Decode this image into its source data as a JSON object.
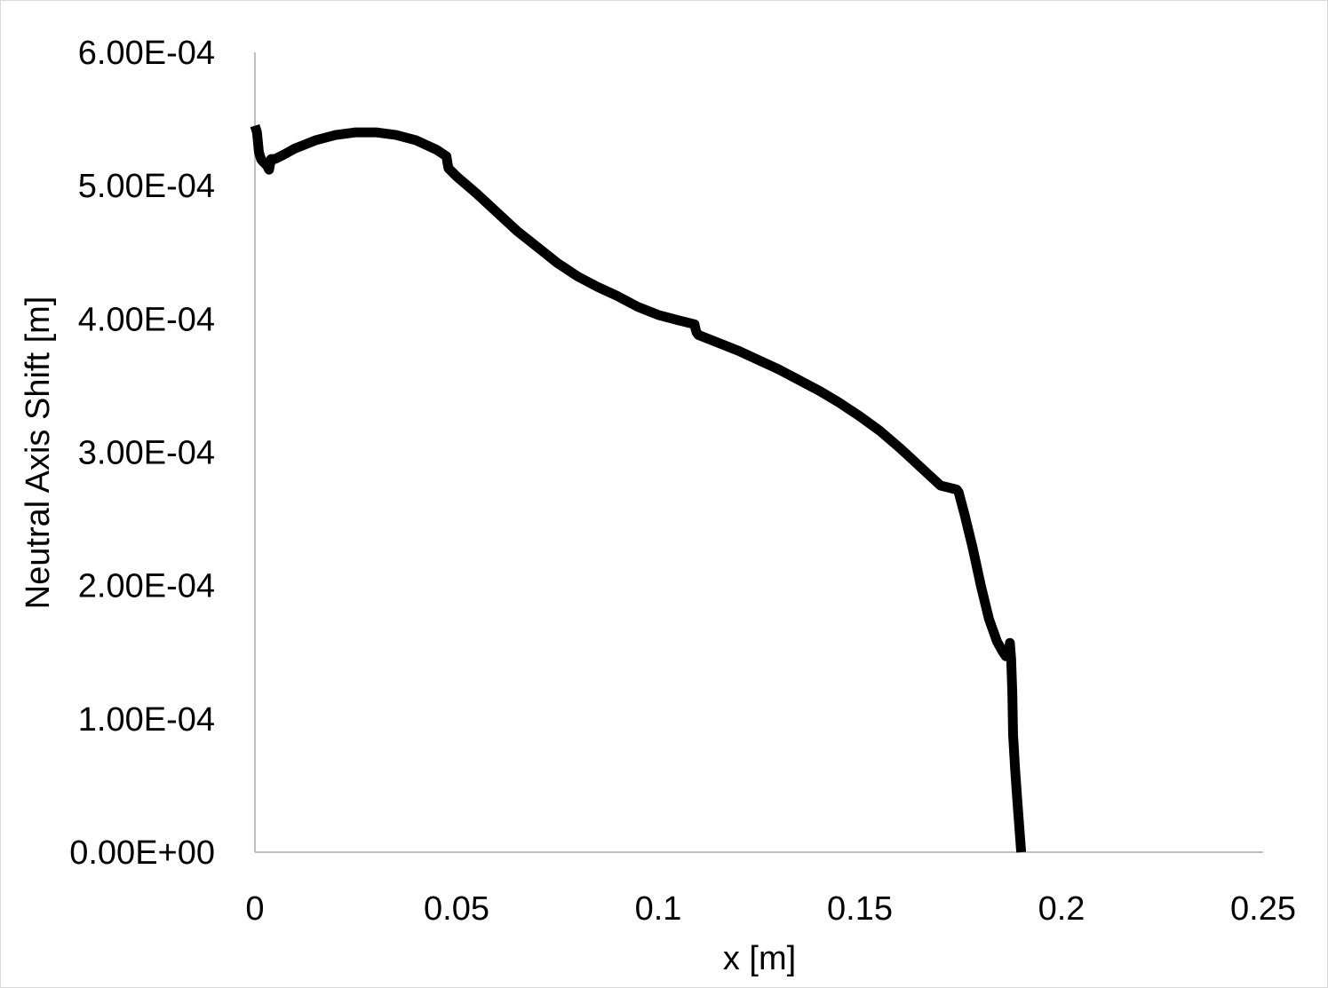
{
  "chart_data": {
    "type": "line",
    "title": "",
    "xlabel": "x [m]",
    "ylabel": "Neutral Axis Shift [m]",
    "xlim": [
      0,
      0.25
    ],
    "ylim": [
      0,
      0.0006
    ],
    "x_ticks": [
      0,
      0.05,
      0.1,
      0.15,
      0.2,
      0.25
    ],
    "x_tick_labels": [
      "0",
      "0.05",
      "0.1",
      "0.15",
      "0.2",
      "0.25"
    ],
    "y_ticks": [
      0,
      0.0001,
      0.0002,
      0.0003,
      0.0004,
      0.0005,
      0.0006
    ],
    "y_tick_labels": [
      "0.00E+00",
      "1.00E-04",
      "2.00E-04",
      "3.00E-04",
      "4.00E-04",
      "5.00E-04",
      "6.00E-04"
    ],
    "grid": false,
    "legend": "none",
    "colors": {
      "line": "#000000",
      "axis": "#bfbfbf"
    },
    "series": [
      {
        "x": [
          0,
          0.0005,
          0.001,
          0.0015,
          0.002,
          0.003,
          0.0035,
          0.004,
          0.005,
          0.007,
          0.01,
          0.015,
          0.02,
          0.025,
          0.03,
          0.035,
          0.04,
          0.045,
          0.0475,
          0.0478,
          0.048,
          0.05,
          0.055,
          0.06,
          0.065,
          0.07,
          0.075,
          0.08,
          0.085,
          0.09,
          0.095,
          0.1,
          0.105,
          0.109,
          0.1092,
          0.1095,
          0.11,
          0.115,
          0.12,
          0.125,
          0.13,
          0.135,
          0.14,
          0.145,
          0.15,
          0.155,
          0.16,
          0.165,
          0.17,
          0.174,
          0.1745,
          0.176,
          0.178,
          0.18,
          0.182,
          0.184,
          0.1855,
          0.1862,
          0.187,
          0.1872,
          0.1875,
          0.1878,
          0.188,
          0.1885,
          0.189,
          0.19
        ],
        "y": [
          0.000545,
          0.00054,
          0.000525,
          0.00052,
          0.000518,
          0.000515,
          0.000512,
          0.00052,
          0.00052,
          0.000523,
          0.000528,
          0.000534,
          0.000538,
          0.00054,
          0.00054,
          0.000538,
          0.000534,
          0.000527,
          0.000522,
          0.000516,
          0.000513,
          0.000507,
          0.000494,
          0.00048,
          0.000466,
          0.000454,
          0.000442,
          0.000432,
          0.000424,
          0.000417,
          0.000409,
          0.000403,
          0.000399,
          0.000396,
          0.000393,
          0.00039,
          0.000388,
          0.000382,
          0.000376,
          0.000369,
          0.000362,
          0.000354,
          0.000346,
          0.000337,
          0.000327,
          0.000316,
          0.000303,
          0.000289,
          0.000275,
          0.000272,
          0.00027,
          0.000253,
          0.000228,
          0.0002,
          0.000175,
          0.000158,
          0.00015,
          0.000147,
          0.000152,
          0.000157,
          0.000145,
          0.00012,
          8.8e-05,
          6.2e-05,
          4e-05,
          0
        ]
      }
    ]
  }
}
